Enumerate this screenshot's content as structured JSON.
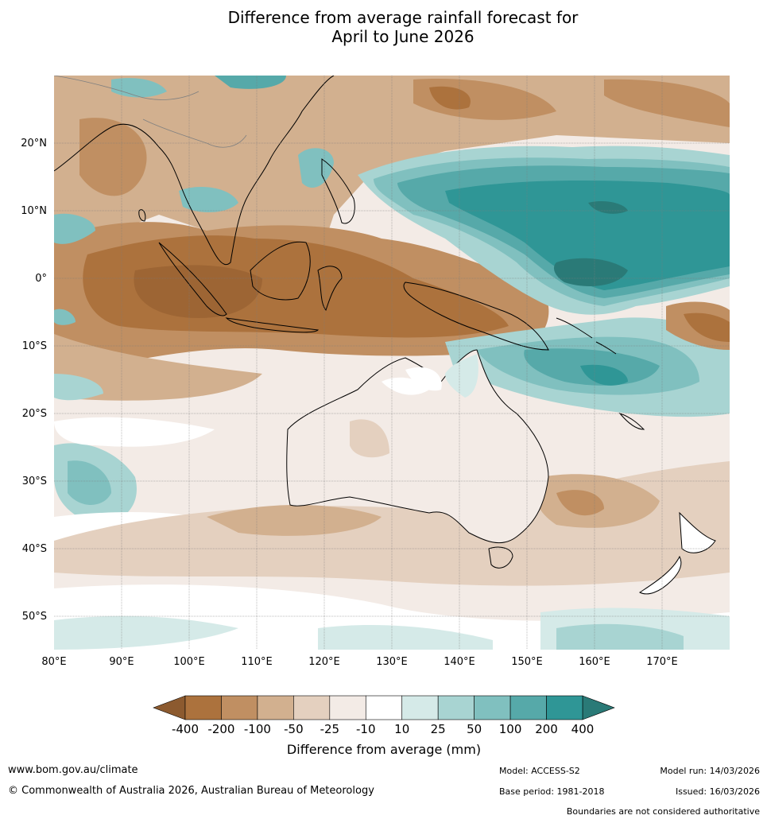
{
  "title": {
    "line1": "Difference from average rainfall forecast for",
    "line2": "April to June 2026"
  },
  "map": {
    "lon_ticks": [
      "80°E",
      "90°E",
      "100°E",
      "110°E",
      "120°E",
      "130°E",
      "140°E",
      "150°E",
      "160°E",
      "170°E"
    ],
    "lat_ticks": [
      "20°N",
      "10°N",
      "0°",
      "10°S",
      "20°S",
      "30°S",
      "40°S",
      "50°S"
    ],
    "lon_range": [
      80,
      180
    ],
    "lat_range": [
      -55,
      30
    ]
  },
  "legend": {
    "title": "Difference from average (mm)",
    "labels": [
      "-400",
      "-200",
      "-100",
      "-50",
      "-25",
      "-10",
      "10",
      "25",
      "50",
      "100",
      "200",
      "400"
    ],
    "colors": [
      "#ac723d",
      "#c08f62",
      "#d2b08f",
      "#e4d0bf",
      "#f3ebe6",
      "#ffffff",
      "#d5eae8",
      "#a8d4d2",
      "#80c0bf",
      "#56a9a9",
      "#2f9696"
    ],
    "under_color": "#8c5a2f",
    "over_color": "#2a7a77"
  },
  "footer": {
    "url": "www.bom.gov.au/climate",
    "copyright": "© Commonwealth of Australia 2026, Australian Bureau of Meteorology",
    "model": "Model: ACCESS-S2",
    "base_period": "Base period: 1981-2018",
    "model_run": "Model run: 14/03/2026",
    "issued": "Issued: 16/03/2026",
    "disclaimer": "Boundaries are not considered authoritative"
  }
}
